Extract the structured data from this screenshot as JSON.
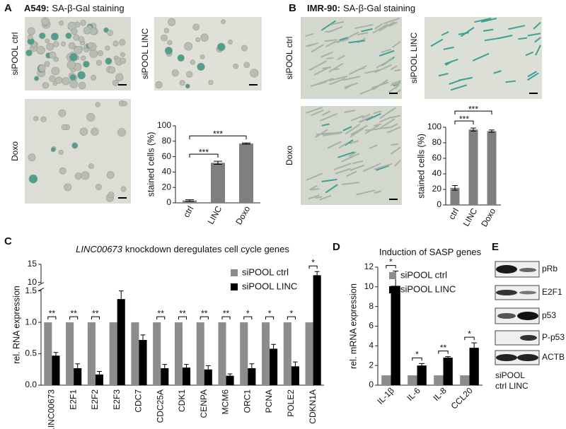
{
  "panels": {
    "A": {
      "label": "A",
      "cell_line": "A549:",
      "heading": "SA-β-Gal staining",
      "images": [
        "siPOOL ctrl",
        "siPOOL LINC",
        "Doxo"
      ]
    },
    "B": {
      "label": "B",
      "cell_line": "IMR-90:",
      "heading": "SA-β-Gal staining",
      "images": [
        "siPOOL ctrl",
        "siPOOL LINC",
        "Doxo"
      ]
    },
    "C": {
      "label": "C"
    },
    "D": {
      "label": "D"
    },
    "E": {
      "label": "E",
      "blots": [
        "pRb",
        "E2F1",
        "p53",
        "P-p53",
        "ACTB"
      ],
      "lanes_title": "siPOOL",
      "lanes": "ctrl LINC"
    }
  },
  "chart_data": [
    {
      "type": "bar",
      "categories": [
        "ctrl",
        "LINC",
        "Doxo"
      ],
      "series": [
        {
          "color": "#7f7f7f",
          "values": [
            3,
            52,
            77
          ],
          "errors": [
            1,
            2,
            0.8
          ]
        }
      ],
      "ylabel": "stained cells (%)",
      "ylim": [
        0,
        100
      ],
      "yticks": [
        0,
        20,
        40,
        60,
        80,
        100
      ],
      "significance": [
        {
          "pair": [
            "ctrl",
            "LINC"
          ],
          "label": "***"
        },
        {
          "pair": [
            "ctrl",
            "Doxo"
          ],
          "label": "***"
        }
      ]
    },
    {
      "type": "bar",
      "categories": [
        "ctrl",
        "LINC",
        "Doxo"
      ],
      "series": [
        {
          "color": "#7f7f7f",
          "values": [
            22,
            97,
            95
          ],
          "errors": [
            3,
            2,
            1.5
          ]
        }
      ],
      "ylabel": "stained cells (%)",
      "ylim": [
        0,
        100
      ],
      "yticks": [
        0,
        20,
        40,
        60,
        80,
        100
      ],
      "significance": [
        {
          "pair": [
            "ctrl",
            "LINC"
          ],
          "label": "***"
        },
        {
          "pair": [
            "ctrl",
            "Doxo"
          ],
          "label": "***"
        }
      ]
    },
    {
      "type": "bar",
      "title_italic": "LINC00673",
      "title": "knockdown deregulates cell cycle genes",
      "categories": [
        "LINC00673",
        "E2F1",
        "E2F2",
        "E2F3",
        "CDC7",
        "CDC25A",
        "CDK1",
        "CENPA",
        "MCM6",
        "ORC1",
        "PCNA",
        "POLE2",
        "CDKN1A"
      ],
      "series": [
        {
          "name": "siPOOL ctrl",
          "color": "#8c8c8c",
          "values": [
            1,
            1,
            1,
            1,
            1,
            1,
            1,
            1,
            1,
            1,
            1,
            1,
            1
          ]
        },
        {
          "name": "siPOOL LINC",
          "color": "#000000",
          "values": [
            0.47,
            0.27,
            0.17,
            1.37,
            0.72,
            0.27,
            0.28,
            0.25,
            0.15,
            0.27,
            0.58,
            0.3,
            12
          ],
          "errors": [
            0.05,
            0.07,
            0.05,
            0.13,
            0.08,
            0.06,
            0.05,
            0.06,
            0.03,
            0.07,
            0.07,
            0.07,
            1
          ]
        }
      ],
      "ylabel": "rel. RNA expression",
      "ylim": [
        0,
        15
      ],
      "ybreak": [
        1.5,
        10
      ],
      "yticks": [
        {
          "value": 0,
          "label": "0.0"
        },
        0.5,
        {
          "value": 1,
          "label": "1.0"
        },
        1.5,
        10,
        15
      ],
      "legend": "upper right",
      "significance": [
        "**",
        "**",
        "**",
        null,
        null,
        "**",
        "**",
        "**",
        "**",
        "*",
        "*",
        "*",
        "*"
      ]
    },
    {
      "type": "bar",
      "title": "Induction of SASP genes",
      "categories": [
        "IL-1β",
        "IL-6",
        "IL-8",
        "CCL20"
      ],
      "series": [
        {
          "name": "siPOOL ctrl",
          "color": "#8c8c8c",
          "values": [
            1,
            1,
            1,
            1
          ]
        },
        {
          "name": "siPOOL LINC",
          "color": "#000000",
          "values": [
            10.1,
            2,
            2.8,
            3.8
          ],
          "errors": [
            1.5,
            0.2,
            0.1,
            0.5
          ]
        }
      ],
      "ylabel": "rel. mRNA expression",
      "ylim": [
        0,
        12
      ],
      "yticks": [
        0,
        2,
        4,
        6,
        8,
        10,
        12
      ],
      "legend": "upper right",
      "significance": [
        "*",
        "*",
        "**",
        "*"
      ]
    }
  ]
}
